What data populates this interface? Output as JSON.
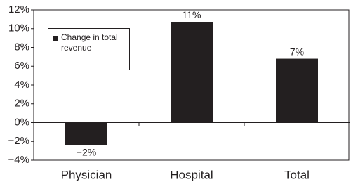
{
  "chart_data": {
    "type": "bar",
    "categories": [
      "Physician",
      "Hospital",
      "Total"
    ],
    "series": [
      {
        "name": "Change in total revenue",
        "color": "#231f20",
        "values": [
          -2.4,
          10.7,
          6.8
        ],
        "value_labels": [
          "−2%",
          "11%",
          "7%"
        ]
      }
    ],
    "ylim": [
      -4,
      12
    ],
    "yticks": [
      {
        "value": -4,
        "label": "−4%"
      },
      {
        "value": -2,
        "label": "−2%"
      },
      {
        "value": 0,
        "label": "0%"
      },
      {
        "value": 2,
        "label": "2%"
      },
      {
        "value": 4,
        "label": "4%"
      },
      {
        "value": 6,
        "label": "6%"
      },
      {
        "value": 8,
        "label": "8%"
      },
      {
        "value": 10,
        "label": "10%"
      },
      {
        "value": 12,
        "label": "12%"
      }
    ],
    "grid": false,
    "legend": "upper-left"
  }
}
